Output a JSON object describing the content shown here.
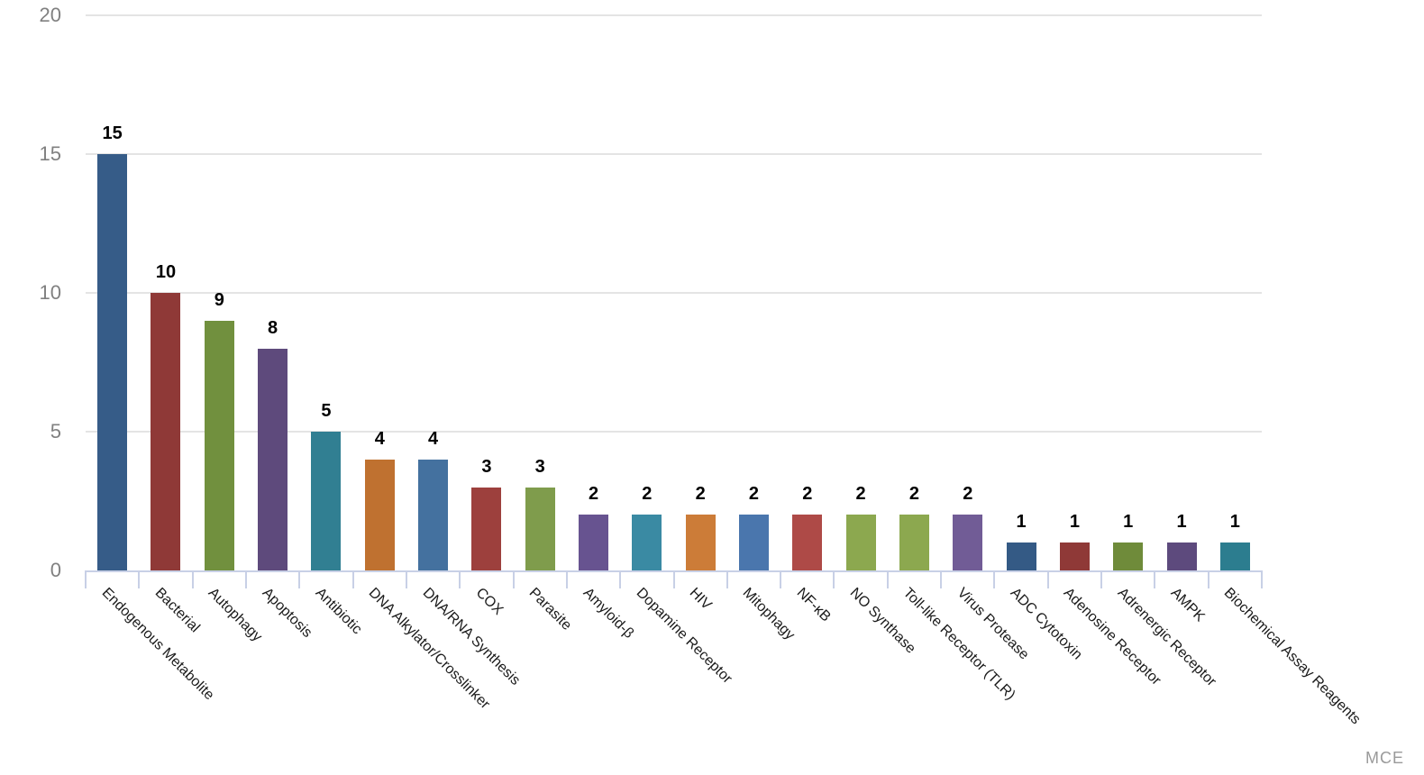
{
  "watermark": {
    "text": "MCE"
  },
  "chart_data": {
    "type": "bar",
    "title": "",
    "xlabel": "",
    "ylabel": "",
    "legend": "none",
    "grid": "horizontal",
    "ylim": [
      0,
      20
    ],
    "yticks": [
      0,
      5,
      10,
      15,
      20
    ],
    "x_label_rotation_deg": 45,
    "value_labels_position": "above bars, bold",
    "categories": [
      "Endogenous Metabolite",
      "Bacterial",
      "Autophagy",
      "Apoptosis",
      "Antibiotic",
      "DNA Alkylator/Crosslinker",
      "DNA/RNA Synthesis",
      "COX",
      "Parasite",
      "Amyloid-β",
      "Dopamine Receptor",
      "HIV",
      "Mitophagy",
      "NF-κB",
      "NO Synthase",
      "Toll-like Receptor (TLR)",
      "Virus Protease",
      "ADC Cytotoxin",
      "Adenosine Receptor",
      "Adrenergic Receptor",
      "AMPK",
      "Biochemical Assay Reagents"
    ],
    "values": [
      15,
      10,
      9,
      8,
      5,
      4,
      4,
      3,
      3,
      2,
      2,
      2,
      2,
      2,
      2,
      2,
      2,
      1,
      1,
      1,
      1,
      1
    ],
    "colors": [
      "#365c88",
      "#8f3937",
      "#71903e",
      "#5e4a7c",
      "#317f92",
      "#bf7130",
      "#44719f",
      "#9d403d",
      "#7f9c4c",
      "#675390",
      "#3a8aa3",
      "#cc7c38",
      "#4a76ad",
      "#ae4a47",
      "#8ca84f",
      "#8ca84f",
      "#715c96",
      "#345a85",
      "#8f3937",
      "#6f8b3a",
      "#5d4a7d",
      "#2c7d8f"
    ],
    "gridline_color": "#e4e4e4",
    "axis_line_color": "#c8d0e6",
    "ytick_label_color": "#808080",
    "value_label_color": "#000000",
    "category_label_color": "#1a1a1a",
    "watermark_color": "#9a9a9a"
  }
}
